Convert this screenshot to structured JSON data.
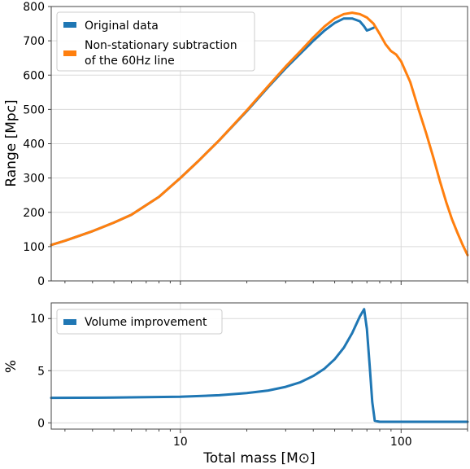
{
  "colors": {
    "original": "#1f77b4",
    "subtraction": "#ff7f0e",
    "volume": "#1f77b4",
    "grid": "#d9d9d9"
  },
  "xlabel": "Total mass [M⊙]",
  "x_tick_labels": [
    "10",
    "100"
  ],
  "chart_data": [
    {
      "type": "line",
      "ylabel": "Range [Mpc]",
      "x_scale": "log",
      "xlim": [
        2.6,
        200
      ],
      "ylim": [
        0,
        800
      ],
      "y_ticks": [
        0,
        100,
        200,
        300,
        400,
        500,
        600,
        700,
        800
      ],
      "y_tick_labels": [
        "0",
        "100",
        "200",
        "300",
        "400",
        "500",
        "600",
        "700",
        "800"
      ],
      "grid": true,
      "legend_placement": "top-left",
      "legend": [
        "Original data",
        "Non-stationary subtraction",
        "of the 60Hz line"
      ],
      "series": [
        {
          "name": "Original data",
          "color": "#1f77b4",
          "x": [
            2.6,
            3,
            4,
            5,
            6,
            8,
            10,
            12,
            15,
            20,
            25,
            30,
            35,
            40,
            45,
            50,
            55,
            60,
            65,
            68,
            70,
            72,
            75
          ],
          "y": [
            105,
            117,
            145,
            170,
            193,
            245,
            300,
            348,
            410,
            495,
            565,
            620,
            663,
            700,
            730,
            752,
            765,
            765,
            757,
            742,
            730,
            733,
            738
          ]
        },
        {
          "name": "Non-stationary subtraction of the 60Hz line",
          "color": "#ff7f0e",
          "x": [
            2.6,
            3,
            4,
            5,
            6,
            8,
            10,
            12,
            15,
            20,
            25,
            30,
            35,
            40,
            45,
            50,
            55,
            60,
            65,
            70,
            75,
            80,
            85,
            90,
            95,
            100,
            110,
            120,
            130,
            140,
            150,
            160,
            170,
            180,
            190,
            200
          ],
          "y": [
            105,
            117,
            145,
            170,
            193,
            245,
            300,
            348,
            410,
            497,
            568,
            625,
            670,
            710,
            742,
            765,
            778,
            782,
            778,
            768,
            750,
            720,
            690,
            670,
            660,
            640,
            580,
            500,
            430,
            360,
            290,
            230,
            180,
            140,
            105,
            75
          ]
        }
      ]
    },
    {
      "type": "line",
      "ylabel": "%",
      "x_scale": "log",
      "xlim": [
        2.6,
        200
      ],
      "ylim": [
        -0.6,
        11.5
      ],
      "y_ticks": [
        0,
        5,
        10
      ],
      "y_tick_labels": [
        "0",
        "5",
        "10"
      ],
      "grid": true,
      "legend_placement": "top-left",
      "legend": [
        "Volume improvement"
      ],
      "series": [
        {
          "name": "Volume improvement",
          "color": "#1f77b4",
          "x": [
            2.6,
            5,
            10,
            15,
            20,
            25,
            30,
            35,
            40,
            45,
            50,
            55,
            60,
            65,
            68,
            70,
            72,
            74,
            76,
            80,
            100,
            150,
            200
          ],
          "y": [
            2.4,
            2.42,
            2.5,
            2.65,
            2.85,
            3.1,
            3.45,
            3.9,
            4.5,
            5.2,
            6.1,
            7.2,
            8.6,
            10.2,
            10.9,
            9.0,
            5.5,
            2.0,
            0.2,
            0.1,
            0.1,
            0.1,
            0.1
          ]
        }
      ]
    }
  ]
}
